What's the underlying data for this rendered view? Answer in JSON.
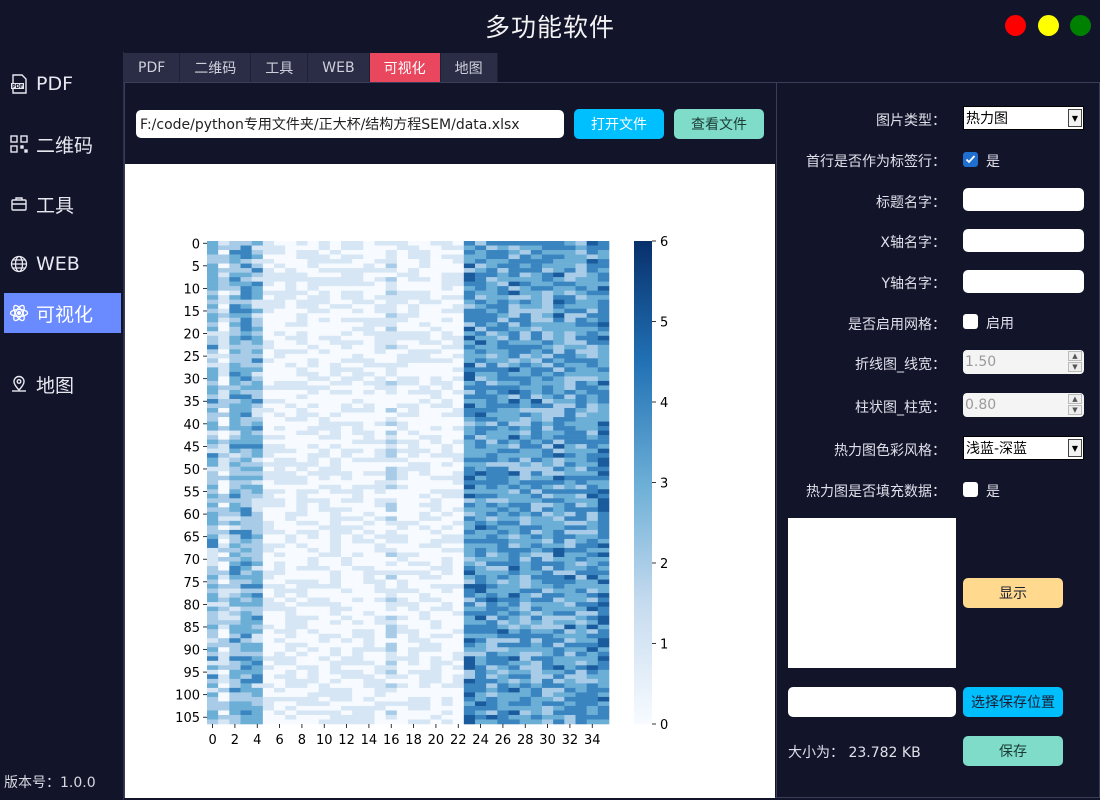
{
  "app": {
    "title": "多功能软件",
    "version": "版本号：1.0.0"
  },
  "window_controls": {
    "colors": [
      "#ff0000",
      "#ffff00",
      "#008000"
    ]
  },
  "sidebar": {
    "items": [
      {
        "label": "PDF",
        "icon": "pdf-icon",
        "active": false
      },
      {
        "label": "二维码",
        "icon": "qrcode-icon",
        "active": false
      },
      {
        "label": "工具",
        "icon": "toolbox-icon",
        "active": false
      },
      {
        "label": "WEB",
        "icon": "globe-icon",
        "active": false
      },
      {
        "label": "可视化",
        "icon": "atom-icon",
        "active": true
      },
      {
        "label": "地图",
        "icon": "map-pin-icon",
        "active": false
      }
    ]
  },
  "tabs": [
    {
      "label": "PDF",
      "active": false
    },
    {
      "label": "二维码",
      "active": false
    },
    {
      "label": "工具",
      "active": false
    },
    {
      "label": "WEB",
      "active": false
    },
    {
      "label": "可视化",
      "active": true
    },
    {
      "label": "地图",
      "active": false
    }
  ],
  "file": {
    "path": "F:/code/python专用文件夹/正大杯/结构方程SEM/data.xlsx",
    "open_label": "打开文件",
    "view_label": "查看文件"
  },
  "settings": {
    "chart_type_label": "图片类型：",
    "chart_type_value": "热力图",
    "header_row_label": "首行是否作为标签行：",
    "header_row_checked": true,
    "header_row_option": "是",
    "title_label": "标题名字：",
    "xaxis_label": "X轴名字：",
    "yaxis_label": "Y轴名字：",
    "grid_label": "是否启用网格：",
    "grid_checked": false,
    "grid_option": "启用",
    "line_width_label": "折线图_线宽：",
    "line_width_value": "1.50",
    "bar_width_label": "柱状图_柱宽：",
    "bar_width_value": "0.80",
    "colormap_label": "热力图色彩风格：",
    "colormap_value": "浅蓝-深蓝",
    "annot_label": "热力图是否填充数据：",
    "annot_checked": false,
    "annot_option": "是",
    "show_label": "显示",
    "choose_save_label": "选择保存位置",
    "size_text": "大小为：  23.782 KB",
    "save_label": "保存"
  },
  "chart_data": {
    "type": "heatmap",
    "title": "",
    "xlabel": "",
    "ylabel": "",
    "x_ticks": [
      "0",
      "2",
      "4",
      "6",
      "8",
      "10",
      "12",
      "14",
      "16",
      "18",
      "20",
      "22",
      "24",
      "26",
      "28",
      "30",
      "32",
      "34"
    ],
    "y_ticks": [
      "0",
      "5",
      "10",
      "15",
      "20",
      "25",
      "30",
      "35",
      "40",
      "45",
      "50",
      "55",
      "60",
      "65",
      "70",
      "75",
      "80",
      "85",
      "90",
      "95",
      "100",
      "105"
    ],
    "n_rows": 107,
    "n_cols": 36,
    "colorbar": {
      "min": 0,
      "max": 6,
      "ticks": [
        "0",
        "1",
        "2",
        "3",
        "4",
        "5",
        "6"
      ]
    },
    "colormap": [
      "#f7fbff",
      "#08306b"
    ],
    "column_means": [
      2.4,
      1.2,
      2.6,
      3.0,
      2.4,
      0.3,
      0.3,
      0.3,
      0.4,
      0.3,
      0.4,
      0.4,
      0.4,
      0.3,
      0.5,
      0.3,
      1.1,
      0.4,
      0.4,
      0.5,
      0.3,
      0.3,
      0.3,
      3.5,
      3.4,
      3.3,
      3.3,
      3.4,
      3.2,
      3.3,
      3.2,
      3.4,
      3.3,
      3.2,
      3.3,
      3.9
    ]
  }
}
